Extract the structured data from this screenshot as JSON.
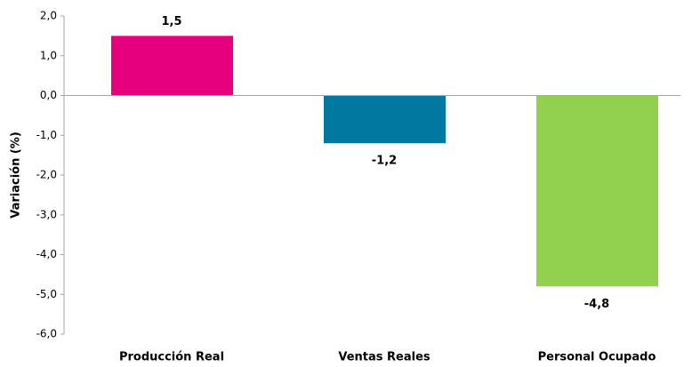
{
  "chart_data": {
    "type": "bar",
    "y_label": "Variación (%)",
    "categories": [
      "Producción Real",
      "Ventas Reales",
      "Personal Ocupado"
    ],
    "values": [
      1.5,
      -1.2,
      -4.8
    ],
    "value_labels": [
      "1,5",
      "-1,2",
      "-4,8"
    ],
    "colors": [
      "#e6007e",
      "#00789f",
      "#92d050"
    ],
    "ylim": [
      -6,
      2
    ],
    "yticks": [
      {
        "value": 2,
        "label": "2,0"
      },
      {
        "value": 1,
        "label": "1,0"
      },
      {
        "value": 0,
        "label": "0,0"
      },
      {
        "value": -1,
        "label": "-1,0"
      },
      {
        "value": -2,
        "label": "-2,0"
      },
      {
        "value": -3,
        "label": "-3,0"
      },
      {
        "value": -4,
        "label": "-4,0"
      },
      {
        "value": -5,
        "label": "-5,0"
      },
      {
        "value": -6,
        "label": "-6,0"
      }
    ],
    "grid": false
  }
}
